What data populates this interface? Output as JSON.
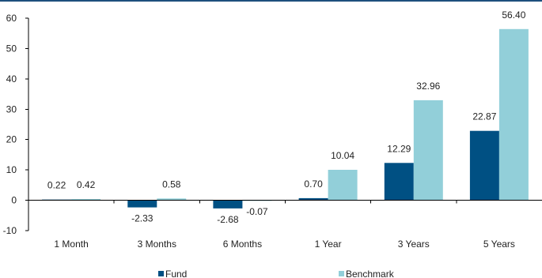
{
  "chart_data": {
    "type": "bar",
    "categories": [
      "1 Month",
      "3 Months",
      "6 Months",
      "1 Year",
      "3 Years",
      "5 Years"
    ],
    "series": [
      {
        "name": "Fund",
        "values": [
          0.22,
          -2.33,
          -2.68,
          0.7,
          12.29,
          22.87
        ],
        "labels": [
          "0.22",
          "-2.33",
          "-2.68",
          "0.70",
          "12.29",
          "22.87"
        ],
        "color": "#005083"
      },
      {
        "name": "Benchmark",
        "values": [
          0.42,
          0.58,
          -0.07,
          10.04,
          32.96,
          56.4
        ],
        "labels": [
          "0.42",
          "0.58",
          "-0.07",
          "10.04",
          "32.96",
          "56.40"
        ],
        "color": "#92cfd9"
      }
    ],
    "title": "",
    "xlabel": "",
    "ylabel": "",
    "ylim": [
      -10,
      60
    ],
    "yticks": [
      -10,
      0,
      10,
      20,
      30,
      40,
      50,
      60
    ],
    "ytick_labels": [
      "-10",
      "0",
      "10",
      "20",
      "30",
      "40",
      "50",
      "60"
    ],
    "grid": false,
    "legend_position": "bottom"
  },
  "colors": {
    "top_rule": "#1d4f7d",
    "axis": "#000000"
  }
}
